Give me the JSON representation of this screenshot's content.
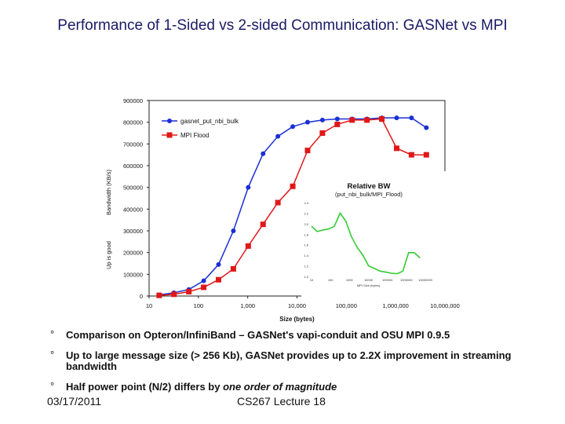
{
  "slide": {
    "title": "Performance of 1-Sided vs 2-sided Communication: GASNet vs MPI",
    "bullets": [
      {
        "marker": "°",
        "text": "Comparison on Opteron/InfiniBand – GASNet's vapi-conduit and OSU MPI 0.9.5"
      },
      {
        "marker": "°",
        "text": "Up to large message size (> 256 Kb), GASNet provides up to 2.2X improvement in streaming bandwidth"
      },
      {
        "marker": "°",
        "text": "Half power point (N/2) differs by ",
        "text_italic": "one order of magnitude"
      }
    ],
    "footer_date": "03/17/2011",
    "footer_lecture": "CS267 Lecture 18"
  },
  "chart_data": [
    {
      "type": "line",
      "xlabel": "Size (bytes)",
      "ylabel": "Bandwidth (KB/s)",
      "ylabel_side": "Up is good",
      "x_scale": "log",
      "xlim": [
        10,
        10000000
      ],
      "ylim": [
        0,
        900000
      ],
      "x_ticks": [
        10,
        100,
        1000,
        10000,
        100000,
        1000000,
        10000000
      ],
      "x_tick_labels": [
        "10",
        "100",
        "1,000",
        "10,000",
        "100,000",
        "1,000,000",
        "10,000,000"
      ],
      "y_ticks": [
        0,
        100000,
        200000,
        300000,
        400000,
        500000,
        600000,
        700000,
        800000,
        900000
      ],
      "y_tick_labels": [
        "0",
        "100000",
        "200000",
        "300000",
        "400000",
        "500000",
        "600000",
        "700000",
        "800000",
        "900000"
      ],
      "grid": false,
      "legend": "top-left",
      "series": [
        {
          "name": "gasnet_put_nbi_bulk",
          "color": "#1a2fd6",
          "marker": "circle",
          "x": [
            16,
            32,
            64,
            128,
            256,
            512,
            1024,
            2048,
            4096,
            8192,
            16384,
            32768,
            65536,
            131072,
            262144,
            524288,
            1048576,
            2097152,
            4194304
          ],
          "y": [
            5000,
            15000,
            30000,
            70000,
            145000,
            300000,
            500000,
            655000,
            735000,
            780000,
            800000,
            810000,
            815000,
            815000,
            815000,
            820000,
            820000,
            820000,
            775000
          ]
        },
        {
          "name": "MPI Flood",
          "color": "#e01818",
          "marker": "square",
          "x": [
            16,
            32,
            64,
            128,
            256,
            512,
            1024,
            2048,
            4096,
            8192,
            16384,
            32768,
            65536,
            131072,
            262144,
            524288,
            1048576,
            2097152,
            4194304
          ],
          "y": [
            3000,
            8000,
            20000,
            40000,
            75000,
            125000,
            230000,
            330000,
            430000,
            505000,
            670000,
            750000,
            790000,
            810000,
            810000,
            815000,
            680000,
            650000,
            650000
          ]
        }
      ]
    },
    {
      "type": "line",
      "title": "Relative BW",
      "subtitle": "(put_nbi_bulk/MPI_Flood)",
      "color": "#33cc33",
      "x_scale": "log",
      "xlim": [
        10,
        10000000
      ],
      "ylim": [
        1.0,
        2.4
      ],
      "x_ticks": [
        10,
        100,
        1000,
        10000,
        100000,
        1000000,
        10000000
      ],
      "x_tick_labels": [
        "10",
        "100",
        "1000",
        "10000",
        "100000",
        "1000000",
        "10000000"
      ],
      "y_ticks": [
        1.0,
        1.2,
        1.4,
        1.6,
        1.8,
        2.0,
        2.2,
        2.4
      ],
      "y_tick_labels": [
        "1.0",
        "1.2",
        "1.4",
        "1.6",
        "1.8",
        "2.0",
        "2.2",
        "2.4"
      ],
      "xlabel": "MPI Size (bytes)",
      "series": [
        {
          "name": "Relative BW",
          "x": [
            10,
            20,
            40,
            80,
            160,
            320,
            640,
            1280,
            2560,
            5120,
            10240,
            20480,
            40960,
            81920,
            163840,
            327680,
            655360,
            1310720,
            2621440,
            5242880
          ],
          "y": [
            1.95,
            1.85,
            1.88,
            1.9,
            1.95,
            2.2,
            2.05,
            1.75,
            1.55,
            1.4,
            1.2,
            1.15,
            1.1,
            1.08,
            1.06,
            1.05,
            1.1,
            1.45,
            1.45,
            1.35
          ]
        }
      ]
    }
  ]
}
